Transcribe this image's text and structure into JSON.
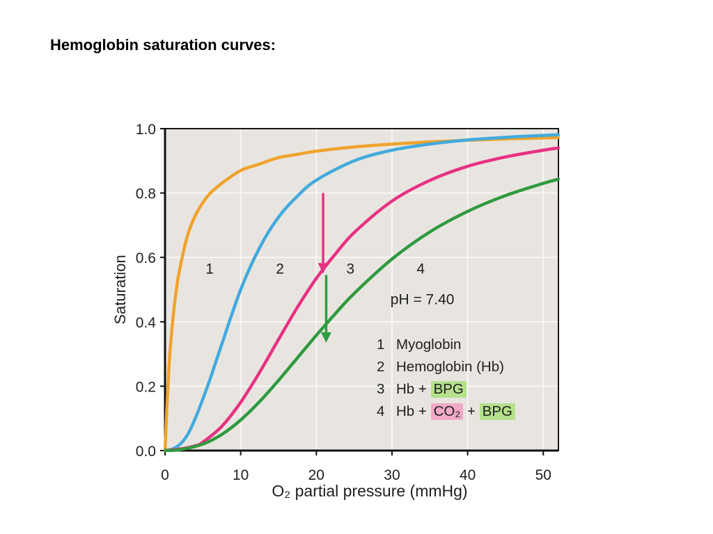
{
  "page": {
    "title": "Hemoglobin saturation curves:"
  },
  "chart_data": {
    "type": "line",
    "title": "",
    "xlabel": "O₂ partial pressure (mmHg)",
    "ylabel": "Saturation",
    "xlim": [
      0,
      52
    ],
    "ylim": [
      0,
      1.0
    ],
    "x_ticks": [
      "0",
      "10",
      "20",
      "30",
      "40",
      "50"
    ],
    "y_ticks": [
      "0.0",
      "0.2",
      "0.4",
      "0.6",
      "0.8",
      "1.0"
    ],
    "grid": true,
    "plot_bg": "#e8e5e0",
    "grid_color": "#f8f6f3",
    "annotation": {
      "text": "pH = 7.40",
      "x": 29.8,
      "y": 0.47
    },
    "series": [
      {
        "number": "1",
        "name": "Myoglobin",
        "color": "#efa32d",
        "label_x": 5.9,
        "label_y": 0.565,
        "points": [
          [
            0,
            0
          ],
          [
            0.5,
            0.25
          ],
          [
            1,
            0.4
          ],
          [
            1.5,
            0.5
          ],
          [
            2,
            0.57
          ],
          [
            3,
            0.67
          ],
          [
            4,
            0.73
          ],
          [
            5,
            0.77
          ],
          [
            6,
            0.8
          ],
          [
            7.5,
            0.83
          ],
          [
            10,
            0.87
          ],
          [
            12.5,
            0.89
          ],
          [
            15,
            0.91
          ],
          [
            17.5,
            0.92
          ],
          [
            20,
            0.93
          ],
          [
            25,
            0.943
          ],
          [
            30,
            0.952
          ],
          [
            35,
            0.959
          ],
          [
            40,
            0.964
          ],
          [
            45,
            0.968
          ],
          [
            50,
            0.971
          ],
          [
            52,
            0.972
          ]
        ]
      },
      {
        "number": "2",
        "name": "Hemoglobin (Hb)",
        "color": "#42aadd",
        "label_x": 15.2,
        "label_y": 0.565,
        "points": [
          [
            0,
            0
          ],
          [
            1,
            0.005
          ],
          [
            2,
            0.02
          ],
          [
            3,
            0.05
          ],
          [
            4,
            0.1
          ],
          [
            5,
            0.16
          ],
          [
            6,
            0.225
          ],
          [
            7.5,
            0.33
          ],
          [
            10,
            0.5
          ],
          [
            12.5,
            0.63
          ],
          [
            15,
            0.725
          ],
          [
            17.5,
            0.79
          ],
          [
            20,
            0.84
          ],
          [
            25,
            0.9
          ],
          [
            30,
            0.933
          ],
          [
            35,
            0.952
          ],
          [
            40,
            0.965
          ],
          [
            45,
            0.973
          ],
          [
            50,
            0.979
          ],
          [
            52,
            0.981
          ]
        ]
      },
      {
        "number": "3",
        "name": "Hb + BPG",
        "color": "#e73183",
        "label_x": 24.5,
        "label_y": 0.565,
        "points": [
          [
            0,
            0
          ],
          [
            2,
            0.005
          ],
          [
            4,
            0.015
          ],
          [
            5,
            0.026
          ],
          [
            7.5,
            0.075
          ],
          [
            10,
            0.15
          ],
          [
            12.5,
            0.243
          ],
          [
            15,
            0.345
          ],
          [
            17.5,
            0.445
          ],
          [
            20,
            0.535
          ],
          [
            22.5,
            0.61
          ],
          [
            25,
            0.677
          ],
          [
            30,
            0.775
          ],
          [
            35,
            0.839
          ],
          [
            40,
            0.883
          ],
          [
            45,
            0.912
          ],
          [
            50,
            0.933
          ],
          [
            52,
            0.94
          ]
        ]
      },
      {
        "number": "4",
        "name": "Hb + CO₂ + BPG",
        "color": "#2f9a3f",
        "label_x": 33.8,
        "label_y": 0.565,
        "points": [
          [
            0,
            0
          ],
          [
            2,
            0.003
          ],
          [
            5,
            0.02
          ],
          [
            7.5,
            0.05
          ],
          [
            10,
            0.095
          ],
          [
            12.5,
            0.152
          ],
          [
            15,
            0.218
          ],
          [
            17.5,
            0.288
          ],
          [
            20,
            0.358
          ],
          [
            22.5,
            0.425
          ],
          [
            25,
            0.488
          ],
          [
            30,
            0.595
          ],
          [
            35,
            0.679
          ],
          [
            40,
            0.743
          ],
          [
            45,
            0.792
          ],
          [
            50,
            0.83
          ],
          [
            52,
            0.843
          ]
        ]
      }
    ],
    "arrows": [
      {
        "x": 20.9,
        "y_start": 0.8,
        "y_end": 0.55,
        "color": "#e73183"
      },
      {
        "x": 21.3,
        "y_start": 0.545,
        "y_end": 0.335,
        "color": "#2f9a3f"
      }
    ],
    "legend": {
      "items": [
        {
          "num": "1",
          "segments": [
            {
              "text": "Myoglobin"
            }
          ]
        },
        {
          "num": "2",
          "segments": [
            {
              "text": "Hemoglobin (Hb)"
            }
          ]
        },
        {
          "num": "3",
          "segments": [
            {
              "text": "Hb + "
            },
            {
              "text": "BPG",
              "bg": "green"
            }
          ]
        },
        {
          "num": "4",
          "segments": [
            {
              "text": "Hb + "
            },
            {
              "text": "CO₂",
              "bg": "pink"
            },
            {
              "text": " + "
            },
            {
              "text": "BPG",
              "bg": "green"
            }
          ]
        }
      ]
    },
    "highlight_colors": {
      "green": "#b5e08c",
      "pink": "#f2a9c9"
    }
  }
}
